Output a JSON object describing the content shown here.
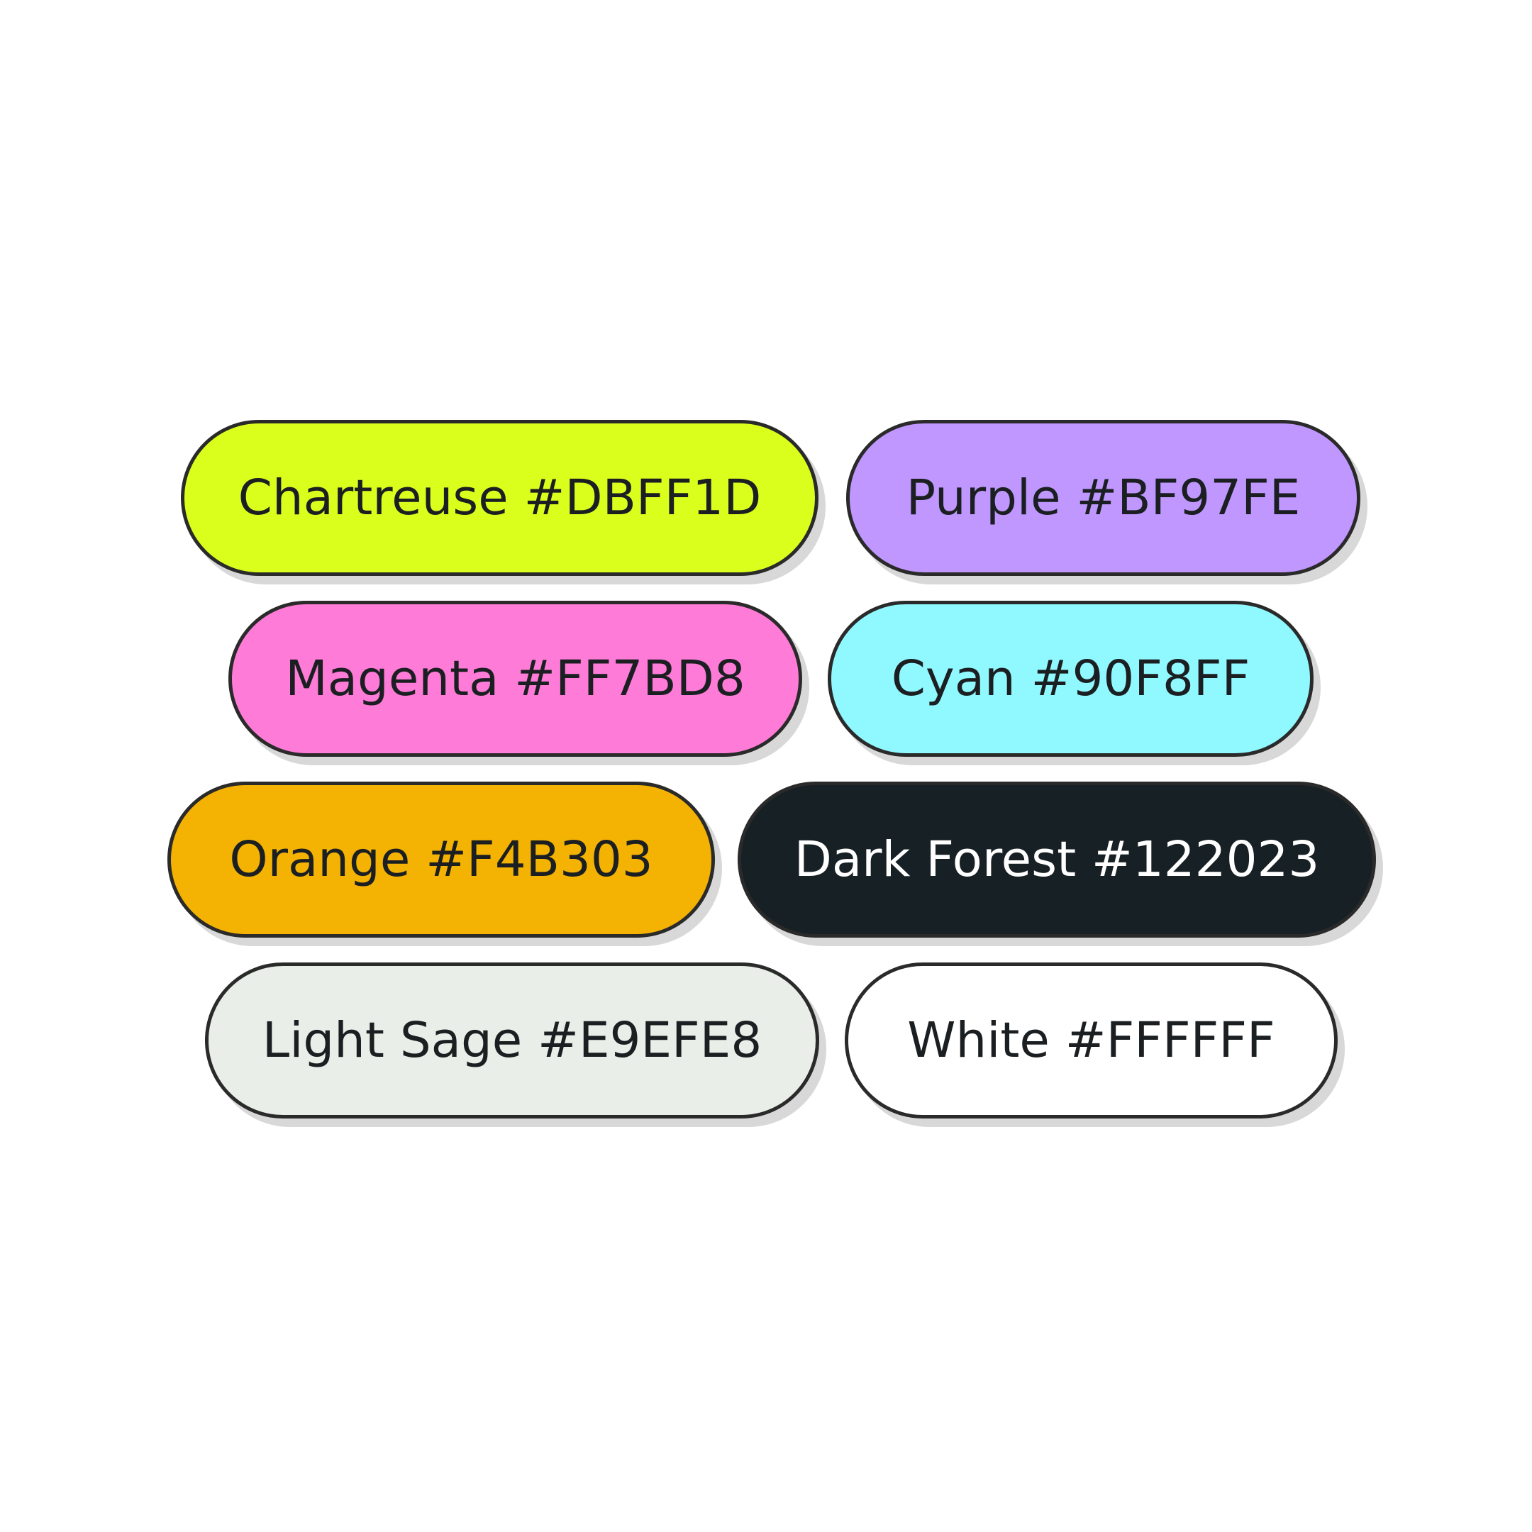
{
  "swatches": [
    {
      "label": "Chartreuse #DBFF1D",
      "color": "#DBFF1D"
    },
    {
      "label": "Purple #BF97FE",
      "color": "#BF97FE"
    },
    {
      "label": "Magenta #FF7BD8",
      "color": "#FF7BD8"
    },
    {
      "label": "Cyan #90F8FF",
      "color": "#90F8FF"
    },
    {
      "label": "Orange #F4B303",
      "color": "#F4B303"
    },
    {
      "label": "Dark Forest #122023",
      "color": "#122023"
    },
    {
      "label": "Light Sage #E9EFE8",
      "color": "#E9EFE8"
    },
    {
      "label": "White #FFFFFF",
      "color": "#FFFFFF"
    }
  ]
}
